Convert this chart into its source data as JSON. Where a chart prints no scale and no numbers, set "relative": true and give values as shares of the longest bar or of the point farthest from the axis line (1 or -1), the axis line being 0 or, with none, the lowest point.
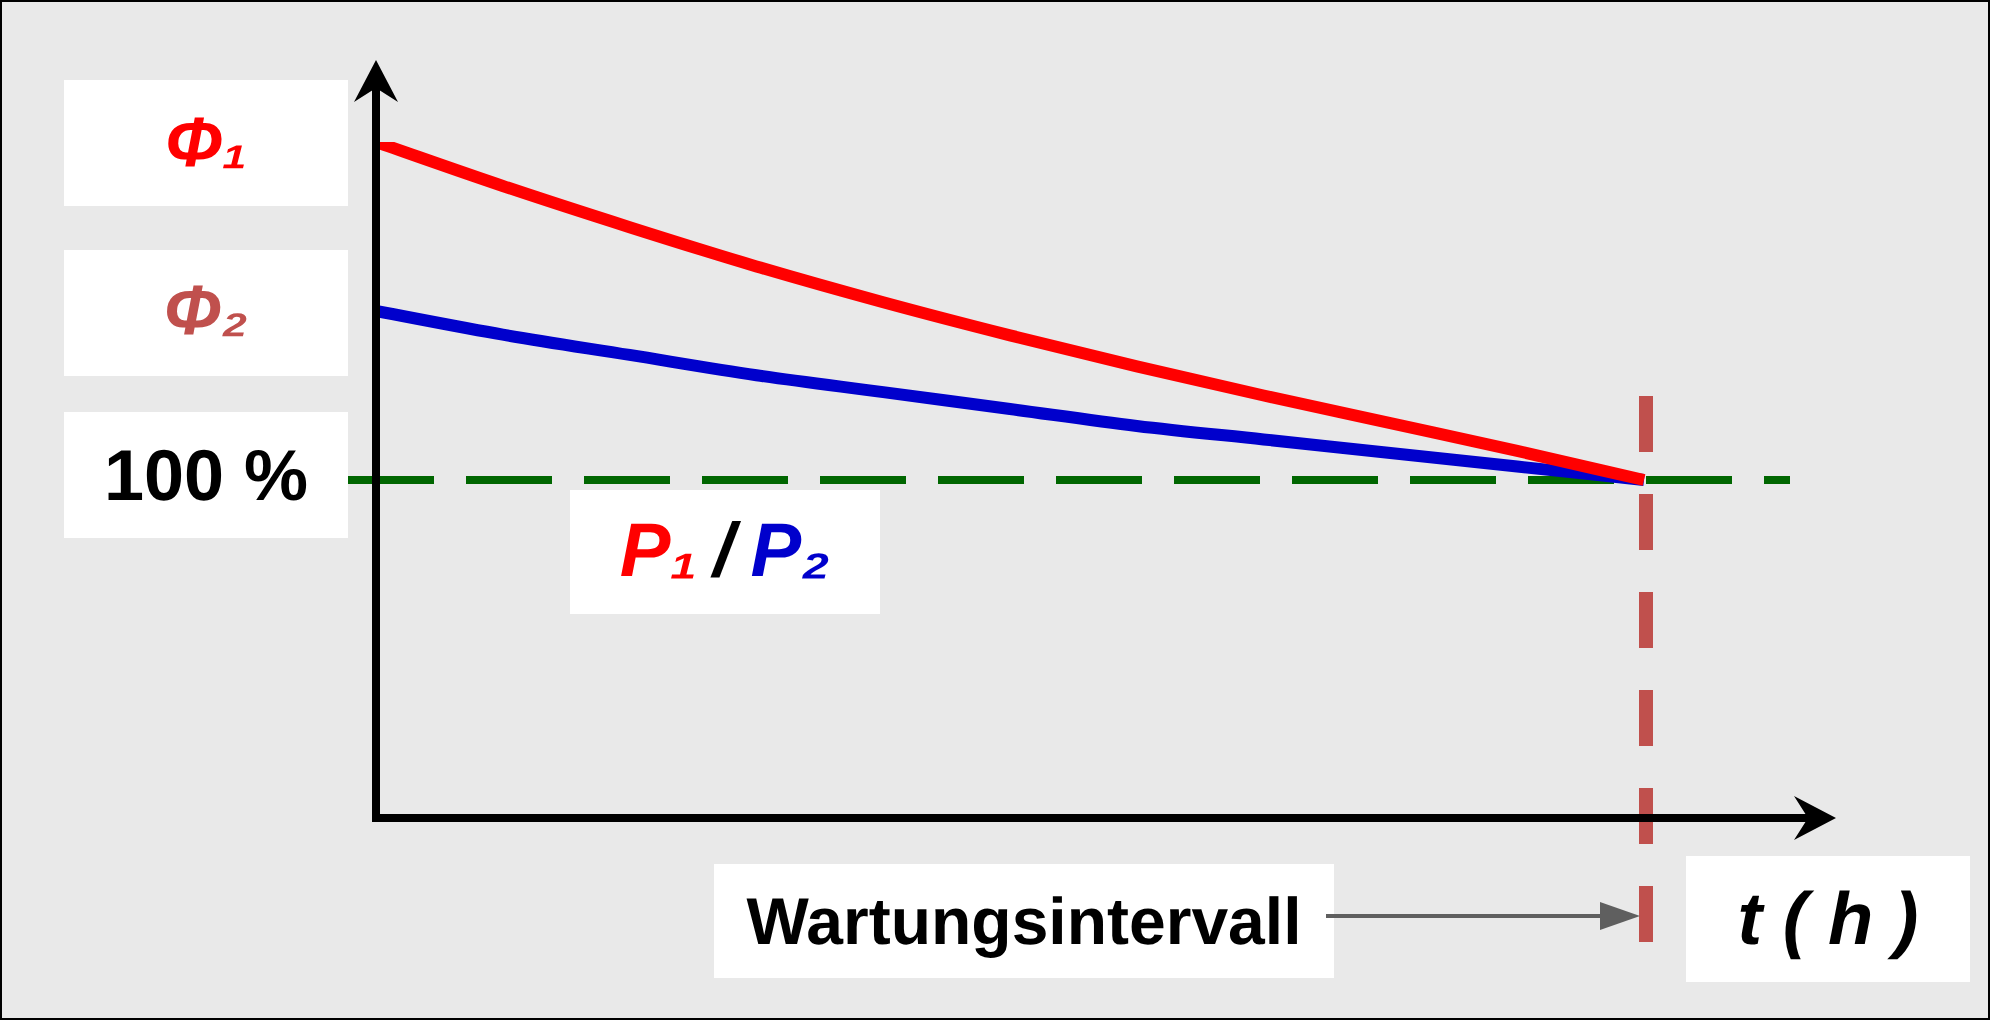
{
  "chart_data": {
    "type": "line",
    "relative": true,
    "xlabel": "t ( h )",
    "categories": [
      null,
      null,
      null,
      null,
      null,
      null,
      null,
      null,
      null,
      null,
      null
    ],
    "series": [
      {
        "name": "P₁",
        "color": "#ff0000",
        "values": [
          1,
          0.935,
          0.874,
          0.816,
          0.763,
          0.714,
          0.668,
          0.625,
          0.584,
          0.543,
          0.5
        ]
      },
      {
        "name": "P₂",
        "color": "#0000cc",
        "values": [
          0.75,
          0.715,
          0.685,
          0.655,
          0.63,
          0.605,
          0.58,
          0.56,
          0.54,
          0.52,
          0.5
        ]
      }
    ],
    "ref_lines": [
      {
        "axis": "y",
        "value": 0.5,
        "color": "#006600",
        "line_style": "dashed"
      }
    ],
    "annotations": [
      "Φ₁",
      "Φ₂",
      "100 %",
      "/",
      "Wartungsintervall"
    ],
    "legend": "left"
  }
}
